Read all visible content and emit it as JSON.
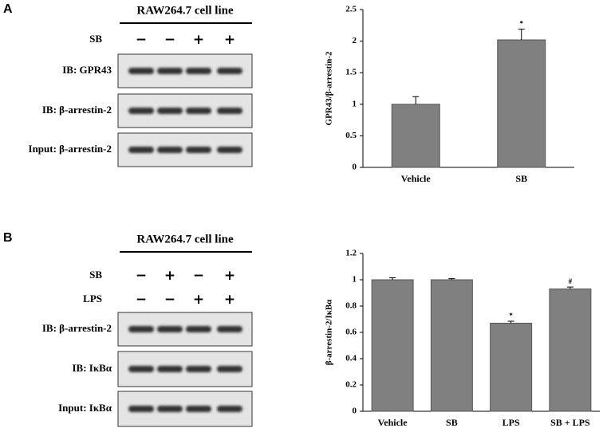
{
  "panels": [
    {
      "letter": "A",
      "cell_line": "RAW264.7 cell line",
      "treatments": [
        {
          "name": "SB",
          "signs": [
            "−",
            "−",
            "+",
            "+"
          ]
        }
      ],
      "rows": [
        "IB: GPR43",
        "IB: β-arrestin-2",
        "Input: β-arrestin-2"
      ]
    },
    {
      "letter": "B",
      "cell_line": "RAW264.7 cell line",
      "treatments": [
        {
          "name": "SB",
          "signs": [
            "−",
            "+",
            "−",
            "+"
          ]
        },
        {
          "name": "LPS",
          "signs": [
            "−",
            "−",
            "+",
            "+"
          ]
        }
      ],
      "rows": [
        "IB: β-arrestin-2",
        "IB: IκBα",
        "Input: IκBα"
      ]
    }
  ],
  "chart_data": [
    {
      "type": "bar",
      "y_label": "GPR43/β-arrestin-2",
      "categories": [
        "Vehicle",
        "SB"
      ],
      "values": [
        1,
        2.02
      ],
      "errors": [
        0.12,
        0.17
      ],
      "significance": [
        null,
        "*"
      ],
      "color": "#808080",
      "ylim": [
        0,
        2.5
      ],
      "yticks": [
        0,
        0.5,
        1,
        1.5,
        2,
        2.5
      ]
    },
    {
      "type": "bar",
      "y_label": "β-arrestin-2/IκBα",
      "categories": [
        "Vehicle",
        "SB",
        "LPS",
        "SB + LPS"
      ],
      "values": [
        1,
        1,
        0.67,
        0.93
      ],
      "errors": [
        0.015,
        0.008,
        0.015,
        0.015
      ],
      "significance": [
        null,
        null,
        "*",
        "#"
      ],
      "color": "#808080",
      "ylim": [
        0,
        1.2
      ],
      "yticks": [
        0,
        0.2,
        0.4,
        0.6,
        0.8,
        1,
        1.2
      ]
    }
  ]
}
